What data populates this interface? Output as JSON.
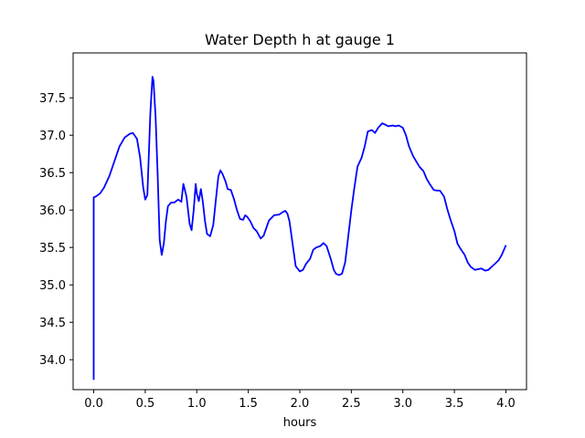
{
  "chart_data": {
    "type": "line",
    "title": "Water Depth h at gauge 1",
    "xlabel": "hours",
    "ylabel": "",
    "xlim": [
      -0.2,
      4.2
    ],
    "ylim": [
      33.6,
      38.1
    ],
    "xticks": [
      0.0,
      0.5,
      1.0,
      1.5,
      2.0,
      2.5,
      3.0,
      3.5,
      4.0
    ],
    "xtick_labels": [
      "0.0",
      "0.5",
      "1.0",
      "1.5",
      "2.0",
      "2.5",
      "3.0",
      "3.5",
      "4.0"
    ],
    "yticks": [
      34.0,
      34.5,
      35.0,
      35.5,
      36.0,
      36.5,
      37.0,
      37.5
    ],
    "ytick_labels": [
      "34.0",
      "34.5",
      "35.0",
      "35.5",
      "36.0",
      "36.5",
      "37.0",
      "37.5"
    ],
    "grid": false,
    "series": [
      {
        "color": "#0000ff",
        "x": [
          0.0,
          0.0,
          0.02,
          0.06,
          0.1,
          0.15,
          0.2,
          0.25,
          0.3,
          0.35,
          0.38,
          0.42,
          0.45,
          0.48,
          0.5,
          0.52,
          0.55,
          0.57,
          0.58,
          0.6,
          0.62,
          0.64,
          0.66,
          0.68,
          0.7,
          0.72,
          0.75,
          0.78,
          0.82,
          0.85,
          0.87,
          0.9,
          0.93,
          0.95,
          0.97,
          0.99,
          1.0,
          1.02,
          1.04,
          1.06,
          1.08,
          1.1,
          1.13,
          1.16,
          1.19,
          1.21,
          1.23,
          1.25,
          1.28,
          1.3,
          1.33,
          1.36,
          1.39,
          1.42,
          1.45,
          1.47,
          1.49,
          1.52,
          1.55,
          1.58,
          1.62,
          1.65,
          1.7,
          1.75,
          1.8,
          1.83,
          1.86,
          1.88,
          1.9,
          1.93,
          1.96,
          2.0,
          2.03,
          2.06,
          2.1,
          2.13,
          2.16,
          2.2,
          2.23,
          2.26,
          2.3,
          2.33,
          2.35,
          2.38,
          2.41,
          2.44,
          2.47,
          2.5,
          2.53,
          2.56,
          2.6,
          2.63,
          2.66,
          2.7,
          2.73,
          2.76,
          2.8,
          2.83,
          2.86,
          2.9,
          2.93,
          2.96,
          3.0,
          3.03,
          3.06,
          3.1,
          3.13,
          3.16,
          3.2,
          3.23,
          3.26,
          3.3,
          3.33,
          3.36,
          3.4,
          3.43,
          3.46,
          3.5,
          3.53,
          3.56,
          3.6,
          3.63,
          3.66,
          3.7,
          3.73,
          3.76,
          3.8,
          3.83,
          3.86,
          3.9,
          3.93,
          3.96,
          4.0
        ],
        "y": [
          33.73,
          36.17,
          36.18,
          36.22,
          36.3,
          36.45,
          36.65,
          36.85,
          36.97,
          37.02,
          37.03,
          36.95,
          36.7,
          36.3,
          36.14,
          36.2,
          37.3,
          37.78,
          37.73,
          37.25,
          36.5,
          35.6,
          35.4,
          35.55,
          35.85,
          36.05,
          36.1,
          36.1,
          36.14,
          36.11,
          36.35,
          36.18,
          35.82,
          35.73,
          36.0,
          36.35,
          36.22,
          36.12,
          36.28,
          36.1,
          35.85,
          35.68,
          35.65,
          35.8,
          36.2,
          36.45,
          36.53,
          36.48,
          36.38,
          36.28,
          36.27,
          36.15,
          36.0,
          35.88,
          35.87,
          35.93,
          35.91,
          35.85,
          35.76,
          35.72,
          35.62,
          35.66,
          35.86,
          35.93,
          35.94,
          35.97,
          35.99,
          35.95,
          35.85,
          35.55,
          35.25,
          35.18,
          35.2,
          35.28,
          35.35,
          35.47,
          35.5,
          35.52,
          35.56,
          35.52,
          35.35,
          35.2,
          35.15,
          35.13,
          35.15,
          35.3,
          35.65,
          36.0,
          36.3,
          36.58,
          36.7,
          36.85,
          37.05,
          37.07,
          37.03,
          37.1,
          37.16,
          37.14,
          37.12,
          37.13,
          37.12,
          37.13,
          37.1,
          37.0,
          36.85,
          36.72,
          36.65,
          36.58,
          36.52,
          36.42,
          36.35,
          36.27,
          36.26,
          36.26,
          36.18,
          36.02,
          35.88,
          35.72,
          35.55,
          35.48,
          35.4,
          35.3,
          35.24,
          35.2,
          35.21,
          35.22,
          35.19,
          35.2,
          35.24,
          35.29,
          35.33,
          35.4,
          35.53
        ]
      }
    ]
  }
}
